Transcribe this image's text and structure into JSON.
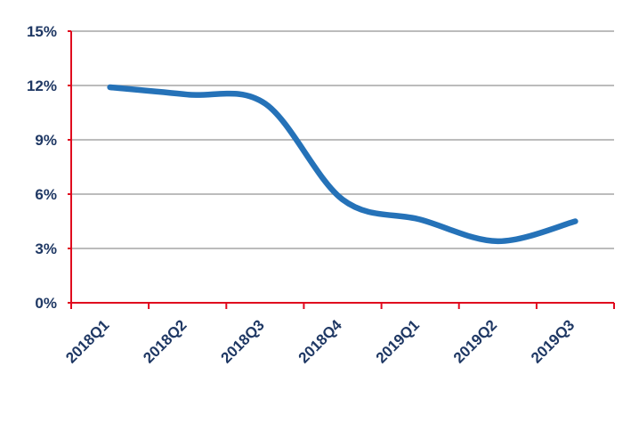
{
  "chart_data": {
    "type": "line",
    "title": "",
    "xlabel": "",
    "ylabel": "",
    "categories": [
      "2018Q1",
      "2018Q2",
      "2018Q3",
      "2018Q4",
      "2019Q1",
      "2019Q2",
      "2019Q3"
    ],
    "values": [
      11.9,
      11.5,
      11.0,
      5.7,
      4.6,
      3.4,
      4.5
    ],
    "ylim": [
      0,
      15
    ],
    "ytick_step": 3,
    "ytick_labels": [
      "0%",
      "3%",
      "6%",
      "9%",
      "12%",
      "15%"
    ],
    "grid": true,
    "legend": false,
    "x_label_rotation": -45,
    "smooth": true,
    "colors": {
      "line": "#2572b8",
      "axis": "#e8randomness",
      "axis_line": "#e00a1e",
      "gridline": "#a6a6a6",
      "tick_label": "#1f3864",
      "background": "#ffffff"
    }
  }
}
